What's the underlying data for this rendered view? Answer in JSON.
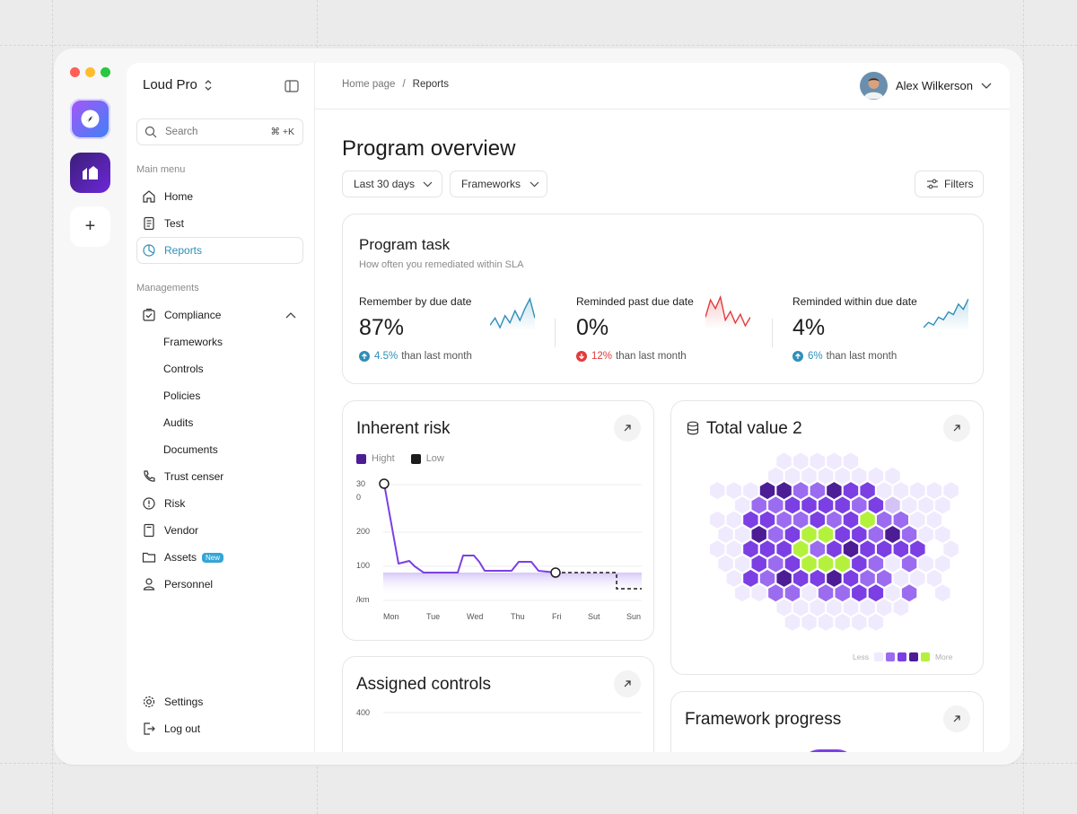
{
  "window_controls": {
    "close_color": "#ff5f57",
    "minimize_color": "#febc2e",
    "maximize_color": "#28c840"
  },
  "apps": [
    {
      "name": "app-primary-icon",
      "gradient": [
        "#8b5cf6",
        "#3b82f6"
      ]
    },
    {
      "name": "app-secondary-icon",
      "gradient": [
        "#4c1d95",
        "#6d28d9"
      ]
    },
    {
      "name": "add-app",
      "symbol": "+"
    }
  ],
  "sidebar": {
    "workspace": "Loud Pro",
    "search": {
      "placeholder": "Search",
      "shortcut": "⌘ +K"
    },
    "main_menu_label": "Main menu",
    "main_menu": [
      {
        "label": "Home",
        "icon": "home-icon"
      },
      {
        "label": "Test",
        "icon": "document-icon"
      },
      {
        "label": "Reports",
        "icon": "pie-chart-icon",
        "active": true
      }
    ],
    "managements_label": "Managements",
    "managements": [
      {
        "label": "Compliance",
        "icon": "checkbox-icon",
        "expanded": true
      },
      {
        "label": "Frameworks",
        "sub": true
      },
      {
        "label": "Controls",
        "sub": true
      },
      {
        "label": "Policies",
        "sub": true
      },
      {
        "label": "Audits",
        "sub": true
      },
      {
        "label": "Documents",
        "sub": true
      },
      {
        "label": "Trust censer",
        "icon": "phone-icon"
      },
      {
        "label": "Risk",
        "icon": "alert-icon"
      },
      {
        "label": "Vendor",
        "icon": "vendor-icon"
      },
      {
        "label": "Assets",
        "icon": "folder-icon",
        "badge": "New"
      },
      {
        "label": "Personnel",
        "icon": "user-icon"
      }
    ],
    "settings": "Settings",
    "logout": "Log out"
  },
  "header": {
    "breadcrumb": [
      "Home page",
      "Reports"
    ],
    "breadcrumb_separator": "/",
    "user": "Alex Wilkerson"
  },
  "page": {
    "title": "Program overview",
    "filters": {
      "period": "Last 30 days",
      "frameworks": "Frameworks",
      "filters_button": "Filters"
    }
  },
  "program_task": {
    "title": "Program task",
    "subtitle": "How often you remediated within SLA",
    "stats": [
      {
        "label": "Remember by due date",
        "value": "87%",
        "change": "4.5%",
        "change_text": "than last month",
        "direction": "up",
        "color": "#2f8fb8",
        "spark": [
          3,
          6,
          2,
          7,
          4,
          9,
          5,
          10,
          14,
          6
        ]
      },
      {
        "label": "Reminded past due date",
        "value": "0%",
        "change": "12%",
        "change_text": "than last month",
        "direction": "down",
        "color": "#e23b3b",
        "spark": [
          6,
          12,
          9,
          13,
          5,
          8,
          4,
          7,
          3,
          6
        ]
      },
      {
        "label": "Reminded within due date",
        "value": "4%",
        "change": "6%",
        "change_text": "than last month",
        "direction": "up",
        "color": "#2f8fb8",
        "spark": [
          2,
          4,
          3,
          6,
          5,
          8,
          7,
          11,
          9,
          13
        ]
      }
    ]
  },
  "inherent_risk": {
    "title": "Inherent risk",
    "legend": [
      {
        "label": "Hight",
        "color": "#4c1d95"
      },
      {
        "label": "Low",
        "color": "#1c1c1c"
      }
    ],
    "y_ticks": [
      "30",
      "0",
      "200",
      "100",
      "/km"
    ],
    "x_ticks": [
      "Mon",
      "Tue",
      "Wed",
      "Thu",
      "Fri",
      "Sut",
      "Sun"
    ]
  },
  "total_value": {
    "title": "Total value 2",
    "legend_less": "Less",
    "legend_more": "More",
    "legend_colors": [
      "#efeafd",
      "#9b6cf0",
      "#7b3fe4",
      "#4c1d95",
      "#b4f13d"
    ],
    "palette": {
      "0": "#efeafd",
      "1": "#9b6cf0",
      "2": "#7b3fe4",
      "3": "#4c1d95",
      "4": "#b4f13d",
      "5": "#d3c3f6"
    },
    "rows": [
      "......00000........",
      ".....00000000......",
      "..000331132200000..",
      "...0112222125000...",
      "..00221121241100...",
      "..00312442213100...",
      "..0022241232222.0..",
      "..00212444210100...",
      "...0213223211000...",
      "...00110112201.0...",
      "......00000000.....",
      "......000000......."
    ]
  },
  "assigned_controls": {
    "title": "Assigned controls",
    "y_tick": "400"
  },
  "framework_progress": {
    "title": "Framework progress"
  }
}
